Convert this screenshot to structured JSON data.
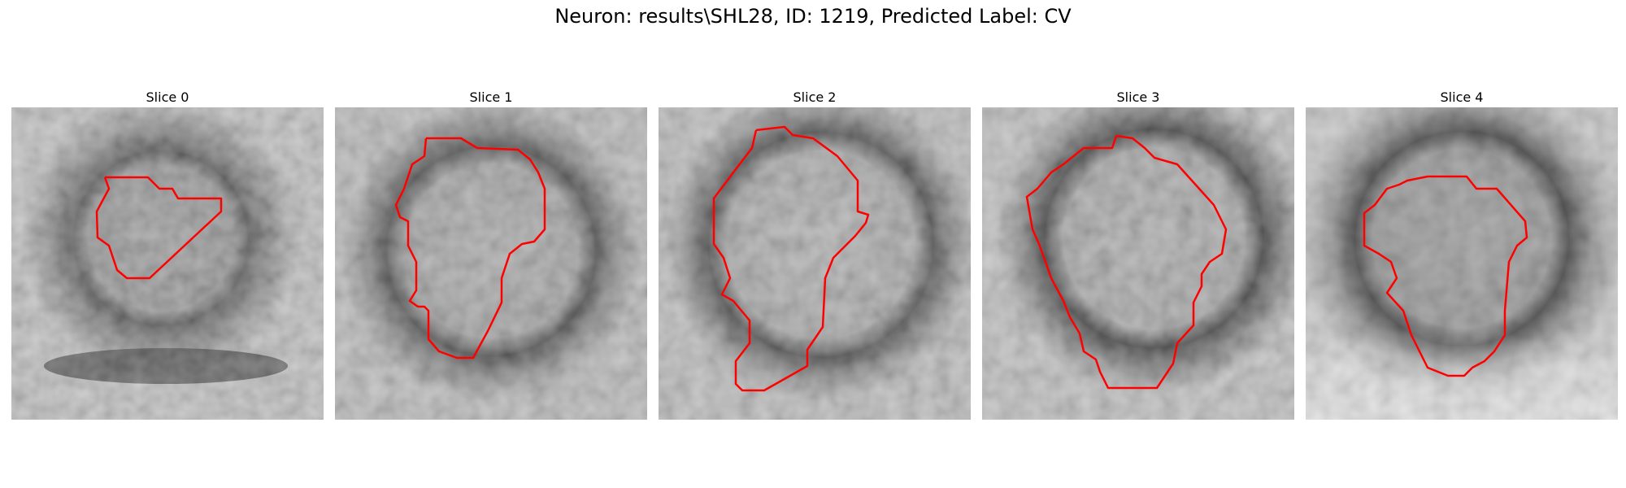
{
  "figure": {
    "title": "Neuron: results\\SHL28, ID: 1219, Predicted Label: CV"
  },
  "panels": [
    {
      "title": "Slice 0"
    },
    {
      "title": "Slice 1"
    },
    {
      "title": "Slice 2"
    },
    {
      "title": "Slice 3"
    },
    {
      "title": "Slice 4"
    }
  ],
  "colors": {
    "contour": "#ff0000",
    "image_colormap": "gray"
  }
}
